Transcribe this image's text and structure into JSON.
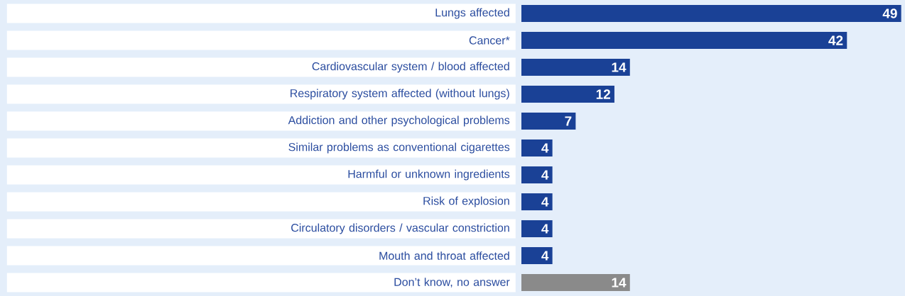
{
  "chart_data": {
    "type": "bar",
    "orientation": "horizontal",
    "data_labels": true,
    "categories": [
      "Lungs affected",
      "Cancer*",
      "Cardiovascular system / blood affected",
      "Respiratory system affected (without lungs)",
      "Addiction and other psychological problems",
      "Similar problems as conventional cigarettes",
      "Harmful or unknown ingredients",
      "Risk of explosion",
      "Circulatory disorders / vascular constriction",
      "Mouth and throat affected",
      "Don’t know, no answer"
    ],
    "values": [
      49,
      42,
      14,
      12,
      7,
      4,
      4,
      4,
      4,
      4,
      14
    ],
    "colors": [
      "#1a4196",
      "#1a4196",
      "#1a4196",
      "#1a4196",
      "#1a4196",
      "#1a4196",
      "#1a4196",
      "#1a4196",
      "#1a4196",
      "#1a4196",
      "#8a8a8a"
    ]
  }
}
